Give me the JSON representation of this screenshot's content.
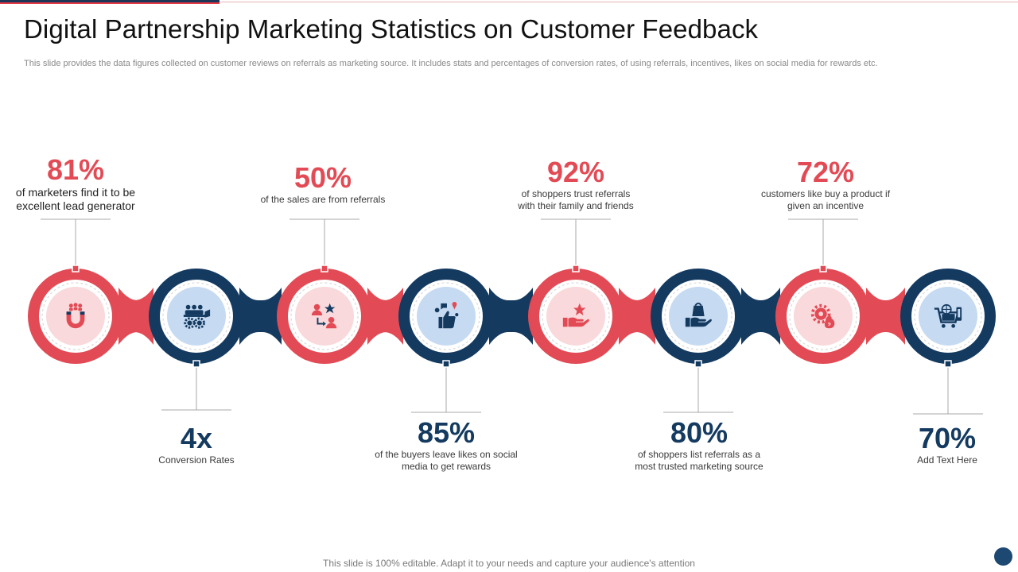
{
  "title": "Digital Partnership Marketing Statistics on Customer Feedback",
  "subtitle": "This slide provides the data figures collected on customer reviews on referrals as marketing source. It includes stats and percentages of conversion rates, of using referrals, incentives, likes on social media for rewards etc.",
  "stats": [
    {
      "value": "81%",
      "line1": "of marketers find it to be",
      "line2": "excellent lead generator",
      "icon": "magnet-people-icon",
      "color": "#e24b55"
    },
    {
      "value": "4x",
      "line1": "Conversion Rates",
      "line2": "",
      "icon": "team-meeting-gears-icon",
      "color": "#143a60"
    },
    {
      "value": "50%",
      "line1": "of the sales are from referrals",
      "line2": "",
      "icon": "referral-people-star-icon",
      "color": "#e24b55"
    },
    {
      "value": "85%",
      "line1": "of the buyers leave likes on social",
      "line2": "media to get rewards",
      "icon": "thumbs-up-social-icon",
      "color": "#143a60"
    },
    {
      "value": "92%",
      "line1": "of shoppers trust referrals",
      "line2": "with their family and friends",
      "icon": "hand-star-icon",
      "color": "#e24b55"
    },
    {
      "value": "80%",
      "line1": "of shoppers list referrals as a",
      "line2": "most trusted marketing source",
      "icon": "hand-shopping-bag-icon",
      "color": "#143a60"
    },
    {
      "value": "72%",
      "line1": "customers like buy a product if",
      "line2": "given an incentive",
      "icon": "gear-money-bag-icon",
      "color": "#e24b55"
    },
    {
      "value": "70%",
      "line1": "Add Text Here",
      "line2": "",
      "icon": "shopping-cart-globe-icon",
      "color": "#143a60"
    }
  ],
  "footer": "This slide is 100% editable. Adapt it to your needs and capture your audience's attention",
  "colors": {
    "red": "#e24b55",
    "navy": "#143a60",
    "red_bg": "#f9d9db",
    "navy_bg": "#c6daf2"
  }
}
